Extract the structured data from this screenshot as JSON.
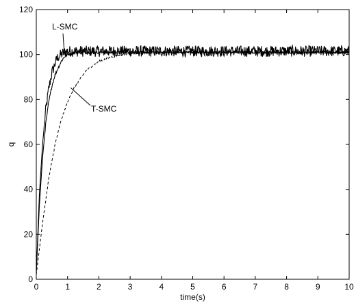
{
  "chart_data": {
    "type": "line",
    "title": "",
    "xlabel": "time(s)",
    "ylabel": "q",
    "xlim": [
      0,
      10
    ],
    "ylim": [
      0,
      120
    ],
    "xticks": [
      0,
      1,
      2,
      3,
      4,
      5,
      6,
      7,
      8,
      9,
      10
    ],
    "yticks": [
      0,
      20,
      40,
      60,
      80,
      100,
      120
    ],
    "grid": false,
    "legend": "none",
    "series": [
      {
        "name": "L-SMC",
        "style": "solid",
        "color": "#000000",
        "x": [
          0,
          0.1,
          0.2,
          0.3,
          0.4,
          0.5,
          0.6,
          0.7,
          0.8,
          0.9,
          1.0,
          1.2,
          1.5,
          2,
          3,
          4,
          5,
          6,
          7,
          8,
          9,
          10
        ],
        "y": [
          3,
          38,
          60,
          75,
          85,
          92,
          96,
          99,
          100,
          101,
          101.5,
          101.5,
          101.5,
          101.5,
          101.5,
          101.5,
          101.5,
          101.5,
          101.5,
          101.5,
          101.5,
          101.5
        ],
        "noise_amplitude": 2.5
      },
      {
        "name": "",
        "style": "solid",
        "color": "#000000",
        "x": [
          0,
          0.1,
          0.2,
          0.3,
          0.4,
          0.5,
          0.6,
          0.7,
          0.8,
          0.9,
          1.0,
          1.2,
          1.5,
          2,
          3,
          4,
          5,
          6,
          7,
          8,
          9,
          10
        ],
        "y": [
          3,
          33,
          54,
          69,
          79,
          86,
          91,
          94,
          97,
          99,
          100,
          101,
          101,
          101,
          101,
          101,
          101,
          101,
          101,
          101,
          101,
          101
        ],
        "noise_amplitude": 0.6
      },
      {
        "name": "T-SMC",
        "style": "dashed",
        "color": "#000000",
        "x": [
          0,
          0.2,
          0.4,
          0.6,
          0.8,
          1.0,
          1.2,
          1.4,
          1.6,
          1.8,
          2.0,
          2.3,
          2.6,
          3,
          3.5,
          4,
          5,
          6,
          7,
          8,
          9,
          10
        ],
        "y": [
          2,
          25,
          45,
          60,
          71,
          79,
          85,
          89,
          93,
          95,
          97,
          98.5,
          99.5,
          100.5,
          100.8,
          101,
          101,
          101,
          101,
          101,
          101,
          101
        ],
        "noise_amplitude": 0.4
      }
    ],
    "annotations": [
      {
        "text": "L-SMC",
        "points_to": {
          "x": 0.9,
          "y": 100
        }
      },
      {
        "text": "T-SMC",
        "points_to": {
          "x": 1.1,
          "y": 82
        }
      }
    ]
  }
}
